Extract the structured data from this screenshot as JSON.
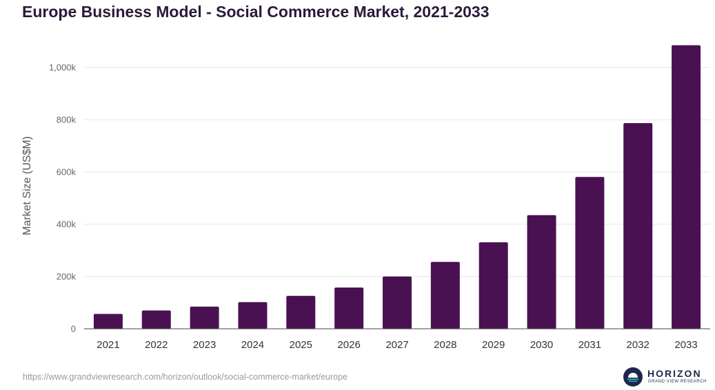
{
  "chart_data": {
    "type": "bar",
    "title": "Europe Business Model - Social Commerce Market, 2021-2033",
    "xlabel": "",
    "ylabel": "Market Size (US$M)",
    "categories": [
      "2021",
      "2022",
      "2023",
      "2024",
      "2025",
      "2026",
      "2027",
      "2028",
      "2029",
      "2030",
      "2031",
      "2032",
      "2033"
    ],
    "values": [
      57000,
      70000,
      85000,
      102000,
      126000,
      158000,
      200000,
      256000,
      331000,
      435000,
      581000,
      787000,
      1085000
    ],
    "ylim": [
      0,
      1100000
    ],
    "yticks": [
      0,
      200000,
      400000,
      600000,
      800000,
      1000000
    ],
    "ytick_labels": [
      "0",
      "200k",
      "400k",
      "600k",
      "800k",
      "1,000k"
    ],
    "grid": true,
    "bar_color": "#4a1152"
  },
  "footer": {
    "source_url": "https://www.grandviewresearch.com/horizon/outlook/social-commerce-market/europe",
    "logo_name": "HORIZON",
    "logo_subtitle": "GRAND VIEW RESEARCH"
  },
  "colors": {
    "title": "#2a1a3a",
    "grid": "#e6e6e6",
    "logo_dark": "#1b2a4a",
    "logo_accent": "#3bb3d6"
  }
}
